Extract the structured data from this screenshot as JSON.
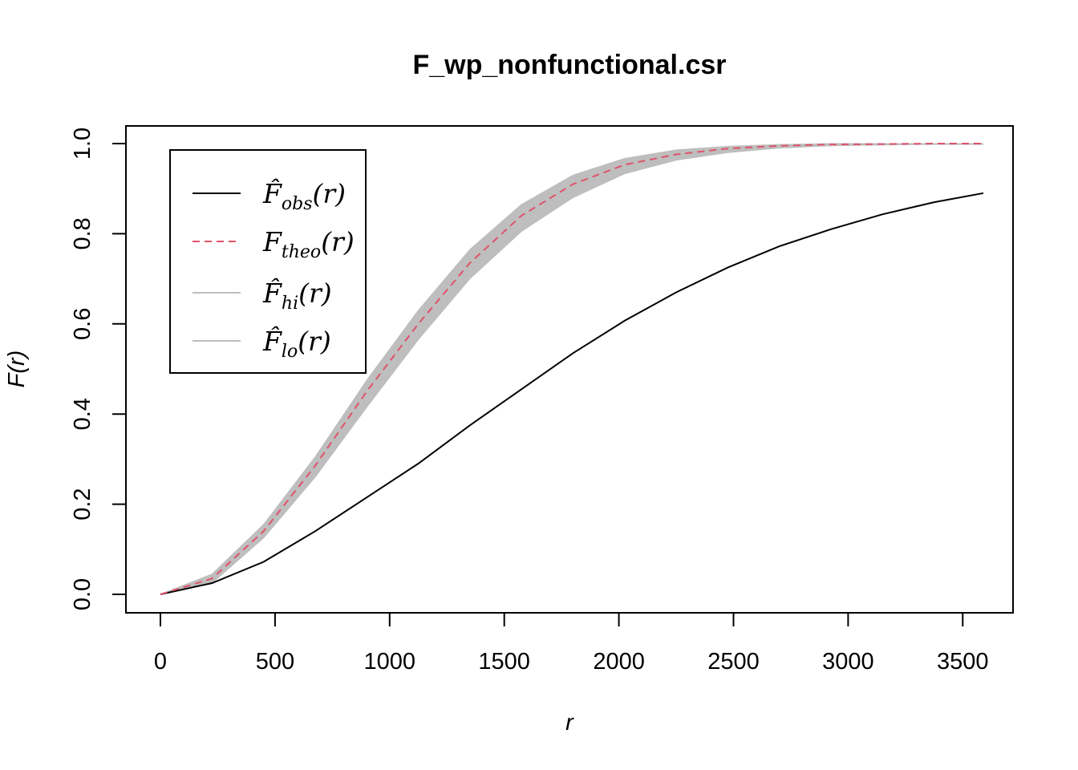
{
  "chart_data": {
    "type": "line",
    "title": "F_wp_nonfunctional.csr",
    "xlabel": "r",
    "ylabel": "F(r)",
    "xlim": [
      0,
      3600
    ],
    "ylim": [
      0,
      1
    ],
    "xticks": [
      0,
      500,
      1000,
      1500,
      2000,
      2500,
      3000,
      3500
    ],
    "yticks": [
      0.0,
      0.2,
      0.4,
      0.6,
      0.8,
      1.0
    ],
    "ytick_labels": [
      "0.0",
      "0.2",
      "0.4",
      "0.6",
      "0.8",
      "1.0"
    ],
    "grid": false,
    "legend_position": "top-left",
    "x": [
      0,
      225,
      450,
      675,
      900,
      1125,
      1350,
      1575,
      1800,
      2025,
      2250,
      2475,
      2700,
      2925,
      3150,
      3375,
      3590
    ],
    "series": [
      {
        "name": "F̂_obs(r)",
        "legend_base": "F̂",
        "legend_sub": "obs",
        "legend_suffix": "(r)",
        "style": "solid",
        "color": "#000000",
        "values": [
          0.0,
          0.025,
          0.072,
          0.14,
          0.215,
          0.29,
          0.375,
          0.455,
          0.535,
          0.607,
          0.67,
          0.725,
          0.772,
          0.81,
          0.843,
          0.87,
          0.89
        ]
      },
      {
        "name": "F_theo(r)",
        "legend_base": "F",
        "legend_sub": "theo",
        "legend_suffix": "(r)",
        "style": "dashed",
        "color": "#df536b",
        "values": [
          0.0,
          0.035,
          0.14,
          0.285,
          0.45,
          0.6,
          0.735,
          0.84,
          0.91,
          0.953,
          0.976,
          0.989,
          0.995,
          0.998,
          0.999,
          1.0,
          1.0
        ]
      },
      {
        "name": "F̂_hi(r)",
        "legend_base": "F̂",
        "legend_sub": "hi",
        "legend_suffix": "(r)",
        "style": "band-upper",
        "color": "#bebebe",
        "values": [
          0.0,
          0.045,
          0.155,
          0.305,
          0.475,
          0.63,
          0.765,
          0.865,
          0.93,
          0.967,
          0.986,
          0.994,
          0.998,
          1.0,
          1.0,
          1.0,
          1.0
        ]
      },
      {
        "name": "F̂_lo(r)",
        "legend_base": "F̂",
        "legend_sub": "lo",
        "legend_suffix": "(r)",
        "style": "band-lower",
        "color": "#bebebe",
        "values": [
          0.0,
          0.025,
          0.125,
          0.26,
          0.415,
          0.565,
          0.7,
          0.805,
          0.88,
          0.933,
          0.963,
          0.98,
          0.99,
          0.995,
          0.997,
          0.998,
          0.998
        ]
      }
    ]
  }
}
